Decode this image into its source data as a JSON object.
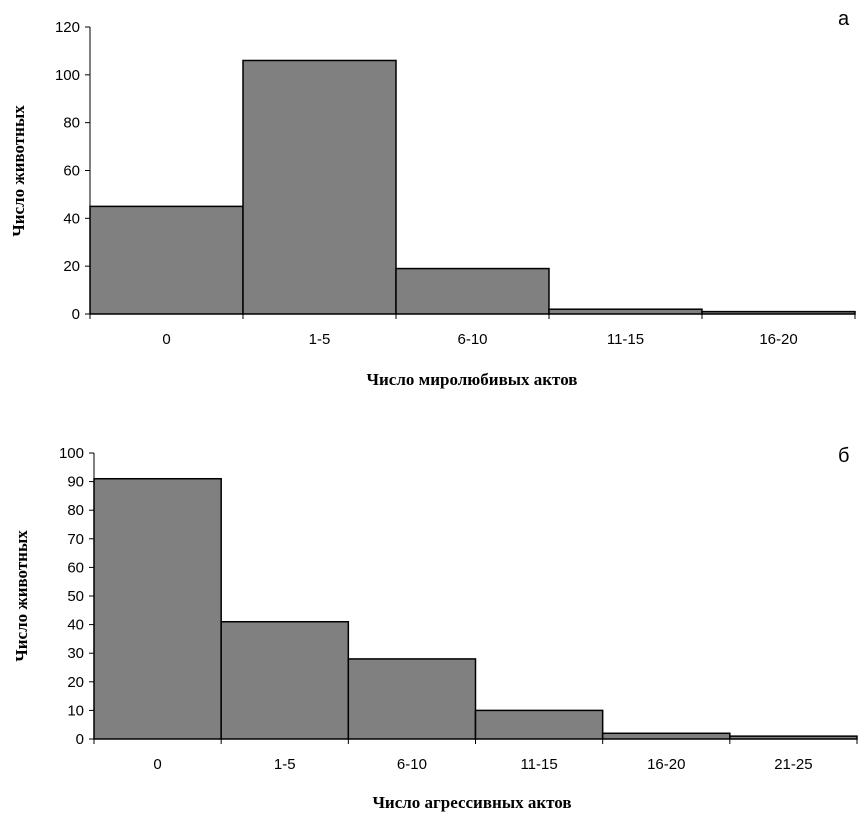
{
  "chart_data": [
    {
      "type": "bar",
      "panel_label": "а",
      "categories": [
        "0",
        "1-5",
        "6-10",
        "11-15",
        "16-20"
      ],
      "values": [
        45,
        106,
        19,
        2,
        1
      ],
      "xlabel": "Число миролюбивых актов",
      "ylabel": "Число животных",
      "ylim": [
        0,
        120
      ],
      "yticks": [
        0,
        20,
        40,
        60,
        80,
        100,
        120
      ],
      "bar_color": "#808080",
      "grid": false
    },
    {
      "type": "bar",
      "panel_label": "б",
      "categories": [
        "0",
        "1-5",
        "6-10",
        "11-15",
        "16-20",
        "21-25"
      ],
      "values": [
        91,
        41,
        28,
        10,
        2,
        1
      ],
      "xlabel": "Число агрессивных актов",
      "ylabel": "Число животных",
      "ylim": [
        0,
        100
      ],
      "yticks": [
        0,
        10,
        20,
        30,
        40,
        50,
        60,
        70,
        80,
        90,
        100
      ],
      "bar_color": "#808080",
      "grid": false
    }
  ]
}
